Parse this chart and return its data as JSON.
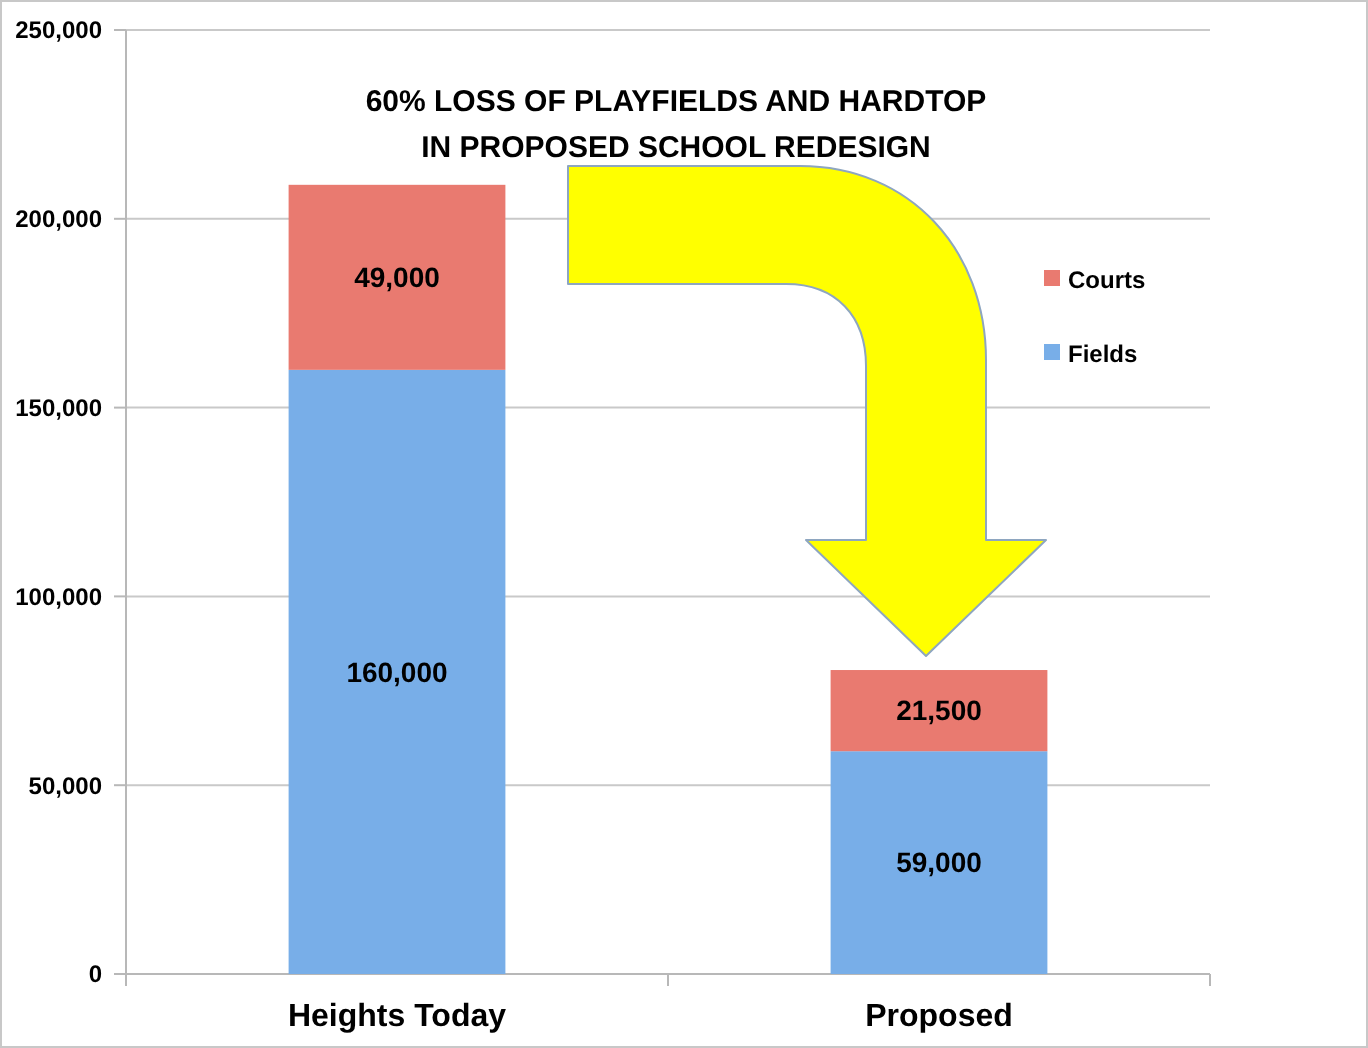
{
  "chart_data": {
    "type": "bar",
    "title": "60% LOSS OF PLAYFIELDS AND HARDTOP\nIN PROPOSED SCHOOL REDESIGN",
    "categories": [
      "Heights Today",
      "Proposed"
    ],
    "stacked": true,
    "series": [
      {
        "name": "Fields",
        "color": "#78aee8",
        "values": [
          160000,
          59000
        ],
        "value_labels": [
          "160,000",
          "59,000"
        ]
      },
      {
        "name": "Courts",
        "color": "#e97a70",
        "values": [
          49000,
          21500
        ],
        "value_labels": [
          "49,000",
          "21,500"
        ]
      }
    ],
    "ylim": [
      0,
      250000
    ],
    "yticks": [
      0,
      {
        "value": 50000,
        "label": "50,000"
      },
      {
        "value": 100000,
        "label": "100,000"
      },
      {
        "value": 150000,
        "label": "150,000"
      },
      {
        "value": 200000,
        "label": "200,000"
      },
      {
        "value": 250000,
        "label": "250,000"
      }
    ],
    "grid": "y",
    "legend": "right"
  }
}
